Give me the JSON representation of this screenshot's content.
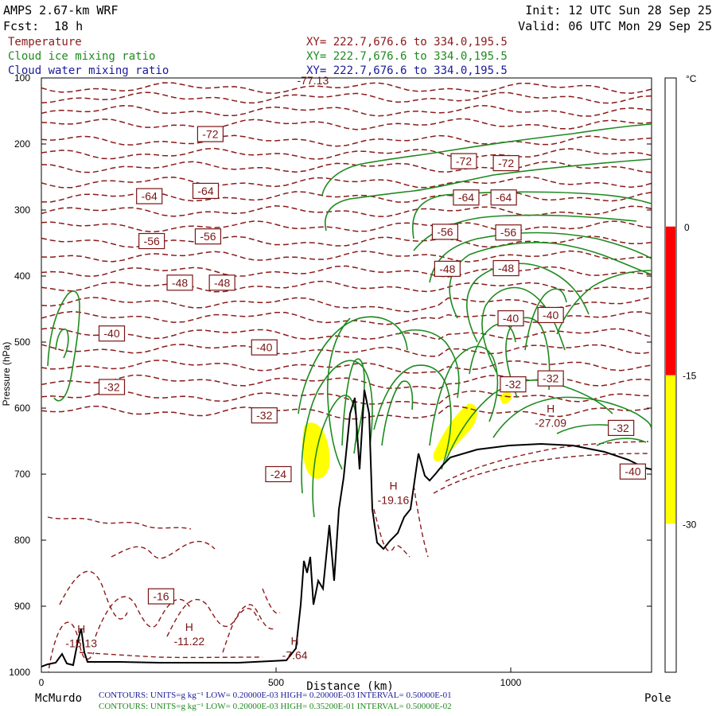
{
  "header": {
    "model": "AMPS 2.67-km WRF",
    "fcst_label": "Fcst:",
    "fcst_value": "18 h",
    "init": "Init: 12 UTC Sun 28 Sep 25",
    "valid": "Valid: 06 UTC Mon 29 Sep 25"
  },
  "legend": [
    {
      "name": "Temperature",
      "xy": "XY= 222.7,676.6 to 334.0,195.5",
      "color": "#8b1a1a"
    },
    {
      "name": "Cloud ice mixing ratio",
      "xy": "XY= 222.7,676.6 to 334.0,195.5",
      "color": "#1f8a1f"
    },
    {
      "name": "Cloud water mixing ratio",
      "xy": "XY= 222.7,676.6 to 334.0,195.5",
      "color": "#1a1a9a"
    }
  ],
  "chart_data": {
    "type": "cross-section",
    "xlabel": "Distance (km)",
    "ylabel": "Pressure (hPa)",
    "xlim": [
      0,
      1300
    ],
    "ylim": [
      1000,
      100
    ],
    "x_ticks": [
      "0",
      "500",
      "1000"
    ],
    "y_ticks": [
      "100",
      "200",
      "300",
      "400",
      "500",
      "600",
      "700",
      "800",
      "900",
      "1000"
    ],
    "x_end_labels": {
      "left": "McMurdo",
      "right": "Pole"
    },
    "colorbar": {
      "unit": "°C",
      "ticks": [
        "0",
        "-15",
        "-30"
      ],
      "bands": [
        {
          "from": 0,
          "to": -15,
          "color": "#ff0000"
        },
        {
          "from": -15,
          "to": -30,
          "color": "#ffff00"
        }
      ]
    },
    "temperature_labels": [
      {
        "text": "-72",
        "x": 360,
        "p": 185
      },
      {
        "text": "-72",
        "x": 900,
        "p": 226
      },
      {
        "text": "-72",
        "x": 990,
        "p": 229
      },
      {
        "text": "-64",
        "x": 230,
        "p": 279
      },
      {
        "text": "-64",
        "x": 350,
        "p": 271
      },
      {
        "text": "-64",
        "x": 905,
        "p": 281
      },
      {
        "text": "-64",
        "x": 985,
        "p": 281
      },
      {
        "text": "-56",
        "x": 235,
        "p": 347
      },
      {
        "text": "-56",
        "x": 355,
        "p": 340
      },
      {
        "text": "-56",
        "x": 860,
        "p": 333
      },
      {
        "text": "-56",
        "x": 995,
        "p": 334
      },
      {
        "text": "-48",
        "x": 295,
        "p": 410
      },
      {
        "text": "-48",
        "x": 385,
        "p": 410
      },
      {
        "text": "-48",
        "x": 865,
        "p": 389
      },
      {
        "text": "-48",
        "x": 990,
        "p": 388
      },
      {
        "text": "-40",
        "x": 150,
        "p": 487
      },
      {
        "text": "-40",
        "x": 475,
        "p": 508
      },
      {
        "text": "-40",
        "x": 1000,
        "p": 464
      },
      {
        "text": "-40",
        "x": 1085,
        "p": 459
      },
      {
        "text": "-40",
        "x": 1260,
        "p": 696
      },
      {
        "text": "-32",
        "x": 150,
        "p": 568
      },
      {
        "text": "-32",
        "x": 475,
        "p": 611
      },
      {
        "text": "-32",
        "x": 1005,
        "p": 564
      },
      {
        "text": "-32",
        "x": 1085,
        "p": 555
      },
      {
        "text": "-32",
        "x": 1235,
        "p": 630
      },
      {
        "text": "-24",
        "x": 505,
        "p": 700
      },
      {
        "text": "-16",
        "x": 255,
        "p": 885
      }
    ],
    "extrema": [
      {
        "symbol": "H",
        "value": "-15.13",
        "x": 85,
        "p": 950
      },
      {
        "symbol": "H",
        "value": "-11.22",
        "x": 315,
        "p": 947
      },
      {
        "symbol": "H",
        "value": "-7.64",
        "x": 540,
        "p": 968
      },
      {
        "symbol": "H",
        "value": "-19.16",
        "x": 750,
        "p": 733
      },
      {
        "symbol": "H",
        "value": "-27.09",
        "x": 1085,
        "p": 616
      }
    ],
    "top_label": "-77.13",
    "top_label_x": 545,
    "footer": [
      {
        "text": "CONTOURS: UNITS=g kg⁻¹ LOW= 0.20000E-03 HIGH= 0.20000E-03 INTERVAL= 0.50000E-01",
        "color": "#1a1a9a"
      },
      {
        "text": "CONTOURS: UNITS=g kg⁻¹ LOW= 0.20000E-03 HIGH= 0.35200E-01 INTERVAL= 0.50000E-02",
        "color": "#1f8a1f"
      }
    ]
  }
}
